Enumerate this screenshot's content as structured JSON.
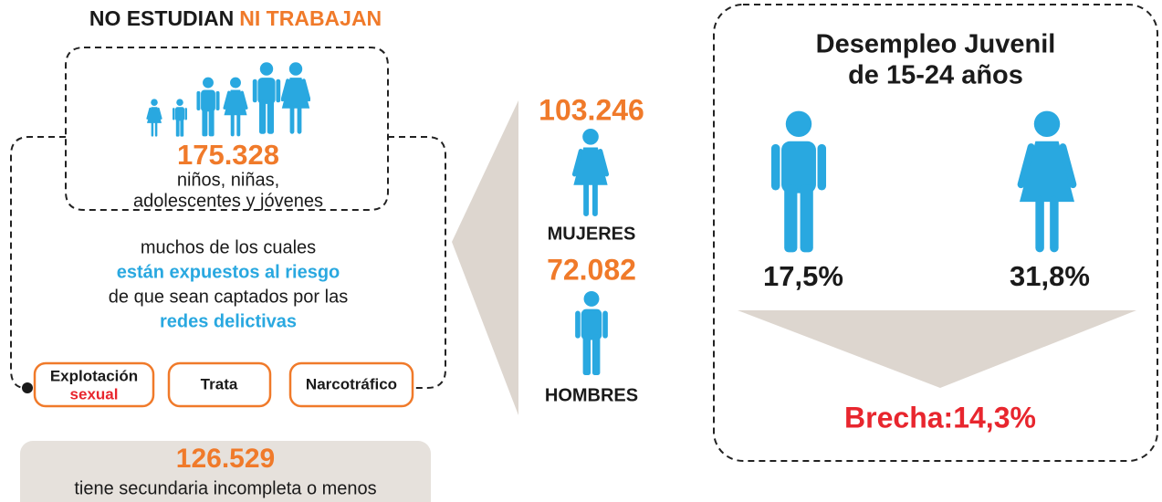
{
  "left": {
    "title_start": "NO ESTUDIAN",
    "title_end": "NI TRABAJAN",
    "total": "175.328",
    "total_lines": [
      "niños, niñas,",
      "adolescentes y jóvenes"
    ],
    "risk_lines": [
      "muchos de los cuales",
      "están expuestos al riesgo",
      "de que sean captados por las",
      "redes delictivas"
    ],
    "tags": [
      {
        "line1": "Explotación",
        "line2": "sexual"
      },
      {
        "line1": "Trata"
      },
      {
        "line1": "Narcotráfico"
      }
    ],
    "secondary_value": "126.529",
    "secondary_text": "tiene secundaria incompleta o menos"
  },
  "middle": {
    "women_value": "103.246",
    "women_label": "MUJERES",
    "men_value": "72.082",
    "men_label": "HOMBRES"
  },
  "right": {
    "title_lines": [
      "Desempleo Juvenil",
      "de 15-24 años"
    ],
    "men_rate": "17,5%",
    "women_rate": "31,8%",
    "gap": "Brecha:14,3%"
  }
}
